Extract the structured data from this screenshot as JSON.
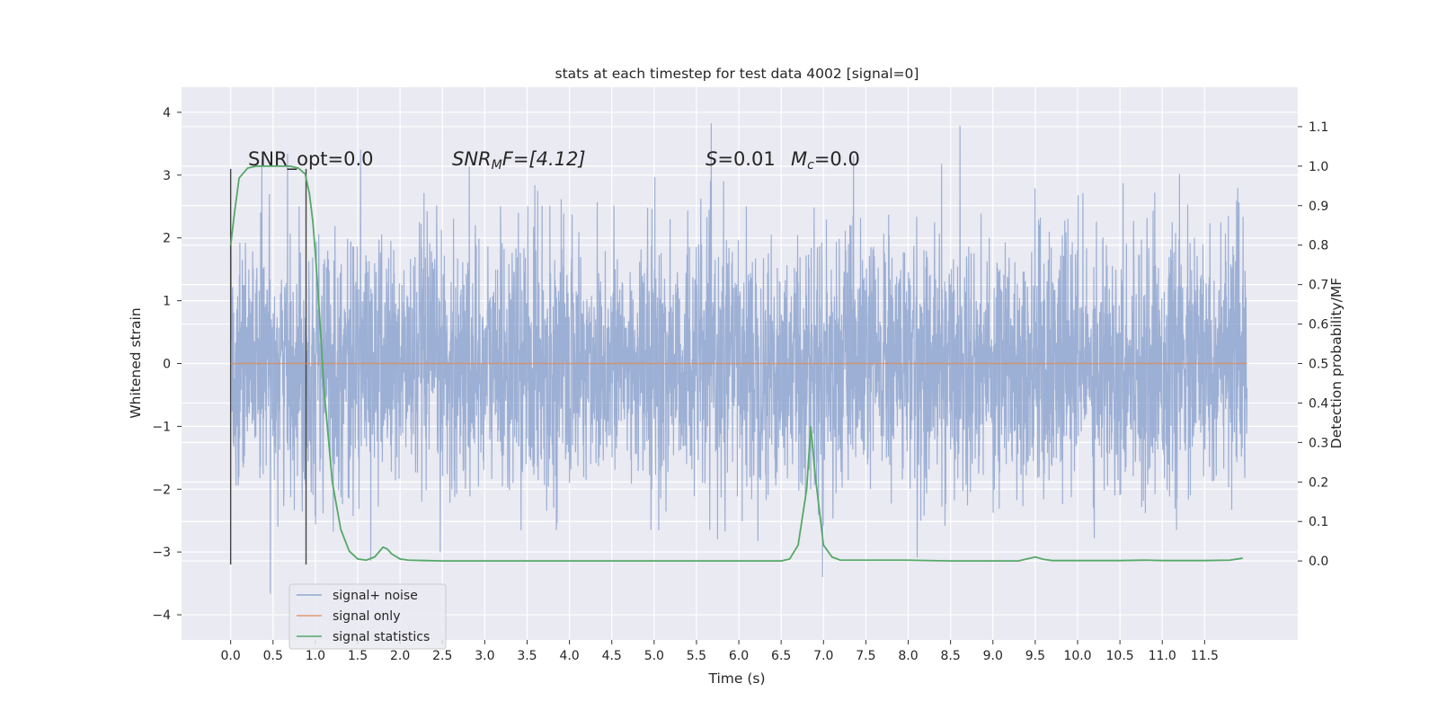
{
  "chart_data": {
    "type": "line",
    "title": "stats at each timestep for test data 4002 [signal=0]",
    "xlabel": "Time (s)",
    "ylabel_left": "Whitened strain",
    "ylabel_right": "Detection probability/MF",
    "xlim": [
      -0.58,
      12.6
    ],
    "ylim_left": [
      -4.4,
      4.4
    ],
    "ylim_right": [
      -0.2,
      1.2
    ],
    "xticks": [
      0.0,
      0.5,
      1.0,
      1.5,
      2.0,
      2.5,
      3.0,
      3.5,
      4.0,
      4.5,
      5.0,
      5.5,
      6.0,
      6.5,
      7.0,
      7.5,
      8.0,
      8.5,
      9.0,
      9.5,
      10.0,
      10.5,
      11.0,
      11.5
    ],
    "xtick_labels": [
      "0.0",
      "0.5",
      "1.0",
      "1.5",
      "2.0",
      "2.5",
      "3.0",
      "3.5",
      "4.0",
      "4.5",
      "5.0",
      "5.5",
      "6.0",
      "6.5",
      "7.0",
      "7.5",
      "8.0",
      "8.5",
      "9.0",
      "9.5",
      "10.0",
      "10.5",
      "11.0",
      "11.5"
    ],
    "yticks_left": [
      -4,
      -3,
      -2,
      -1,
      0,
      1,
      2,
      3,
      4
    ],
    "ytick_labels_left": [
      "−4",
      "−3",
      "−2",
      "−1",
      "0",
      "1",
      "2",
      "3",
      "4"
    ],
    "yticks_right": [
      0.0,
      0.1,
      0.2,
      0.3,
      0.4,
      0.5,
      0.6,
      0.7,
      0.8,
      0.9,
      1.0,
      1.1
    ],
    "ytick_labels_right": [
      "0.0",
      "0.1",
      "0.2",
      "0.3",
      "0.4",
      "0.5",
      "0.6",
      "0.7",
      "0.8",
      "0.9",
      "1.0",
      "1.1"
    ],
    "grid": true,
    "legend_position": "lower-left",
    "annotations": {
      "snr_opt": "SNR_opt=0.0",
      "snr_mf_sym": "SNR",
      "snr_mf_sub": "M",
      "snr_mf_rest": "F=[4.12]",
      "s_sym": "S",
      "s_rest": "=0.01",
      "mc_sym": "M",
      "mc_sub": "c",
      "mc_rest": "=0.0"
    },
    "vertical_markers": [
      0.0,
      0.89
    ],
    "series": [
      {
        "name": "signal+ noise",
        "axis": "left",
        "color": "#7b96c8",
        "description_stats": {
          "t_start": 0.0,
          "t_end": 12.0,
          "amplitude_std": 1.0,
          "max": 4.0,
          "min": -4.1
        }
      },
      {
        "name": "signal only",
        "axis": "left",
        "color": "#dd8452",
        "x": [
          0.0,
          12.0
        ],
        "y": [
          0.0,
          0.0
        ]
      },
      {
        "name": "signal statistics",
        "axis": "right",
        "color": "#55a868",
        "x": [
          0.0,
          0.05,
          0.1,
          0.2,
          0.3,
          0.5,
          0.7,
          0.8,
          0.88,
          0.93,
          0.97,
          1.0,
          1.05,
          1.1,
          1.2,
          1.3,
          1.4,
          1.5,
          1.6,
          1.7,
          1.8,
          1.85,
          1.9,
          2.0,
          2.1,
          2.3,
          2.5,
          3.0,
          4.0,
          5.0,
          6.0,
          6.5,
          6.6,
          6.7,
          6.8,
          6.85,
          6.9,
          7.0,
          7.1,
          7.2,
          7.5,
          8.0,
          8.5,
          9.0,
          9.3,
          9.5,
          9.6,
          9.7,
          10.0,
          10.5,
          10.8,
          11.0,
          11.5,
          11.8,
          11.95
        ],
        "y": [
          0.8,
          0.89,
          0.97,
          0.995,
          1.0,
          1.0,
          1.0,
          0.995,
          0.98,
          0.93,
          0.86,
          0.78,
          0.62,
          0.44,
          0.2,
          0.08,
          0.025,
          0.005,
          0.002,
          0.01,
          0.035,
          0.03,
          0.018,
          0.005,
          0.002,
          0.001,
          0.0,
          0.0,
          0.0,
          0.0,
          0.0,
          0.0,
          0.005,
          0.04,
          0.18,
          0.34,
          0.22,
          0.04,
          0.01,
          0.002,
          0.002,
          0.002,
          0.0,
          0.0,
          0.0,
          0.01,
          0.004,
          0.001,
          0.001,
          0.001,
          0.002,
          0.001,
          0.001,
          0.002,
          0.007
        ]
      }
    ]
  }
}
